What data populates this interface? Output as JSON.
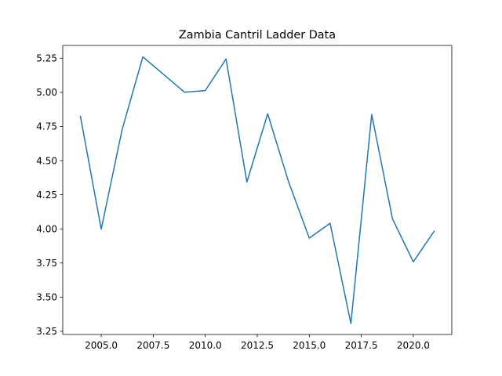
{
  "chart_data": {
    "type": "line",
    "title": "Zambia Cantril Ladder Data",
    "xlabel": "",
    "ylabel": "",
    "xlim": [
      2003.15,
      2021.85
    ],
    "ylim": [
      3.2265,
      5.3435
    ],
    "grid": false,
    "xticks": [
      2005.0,
      2007.5,
      2010.0,
      2012.5,
      2015.0,
      2017.5,
      2020.0
    ],
    "xtick_labels": [
      "2005.0",
      "2007.5",
      "2010.0",
      "2012.5",
      "2015.0",
      "2017.5",
      "2020.0"
    ],
    "yticks": [
      3.25,
      3.5,
      3.75,
      4.0,
      4.25,
      4.5,
      4.75,
      5.0,
      5.25
    ],
    "ytick_labels": [
      "3.25",
      "3.50",
      "3.75",
      "4.00",
      "4.25",
      "4.50",
      "4.75",
      "5.00",
      "5.25"
    ],
    "series": [
      {
        "color": "#1f77b4",
        "x": [
          2004,
          2005,
          2006,
          2007,
          2009,
          2010,
          2011,
          2012,
          2013,
          2014,
          2015,
          2016,
          2017,
          2018,
          2019,
          2020,
          2021
        ],
        "y": [
          4.824,
          3.998,
          4.725,
          5.26,
          5.001,
          5.013,
          5.244,
          4.343,
          4.843,
          4.347,
          3.932,
          4.041,
          3.307,
          4.838,
          4.073,
          3.759,
          3.982
        ]
      }
    ]
  }
}
